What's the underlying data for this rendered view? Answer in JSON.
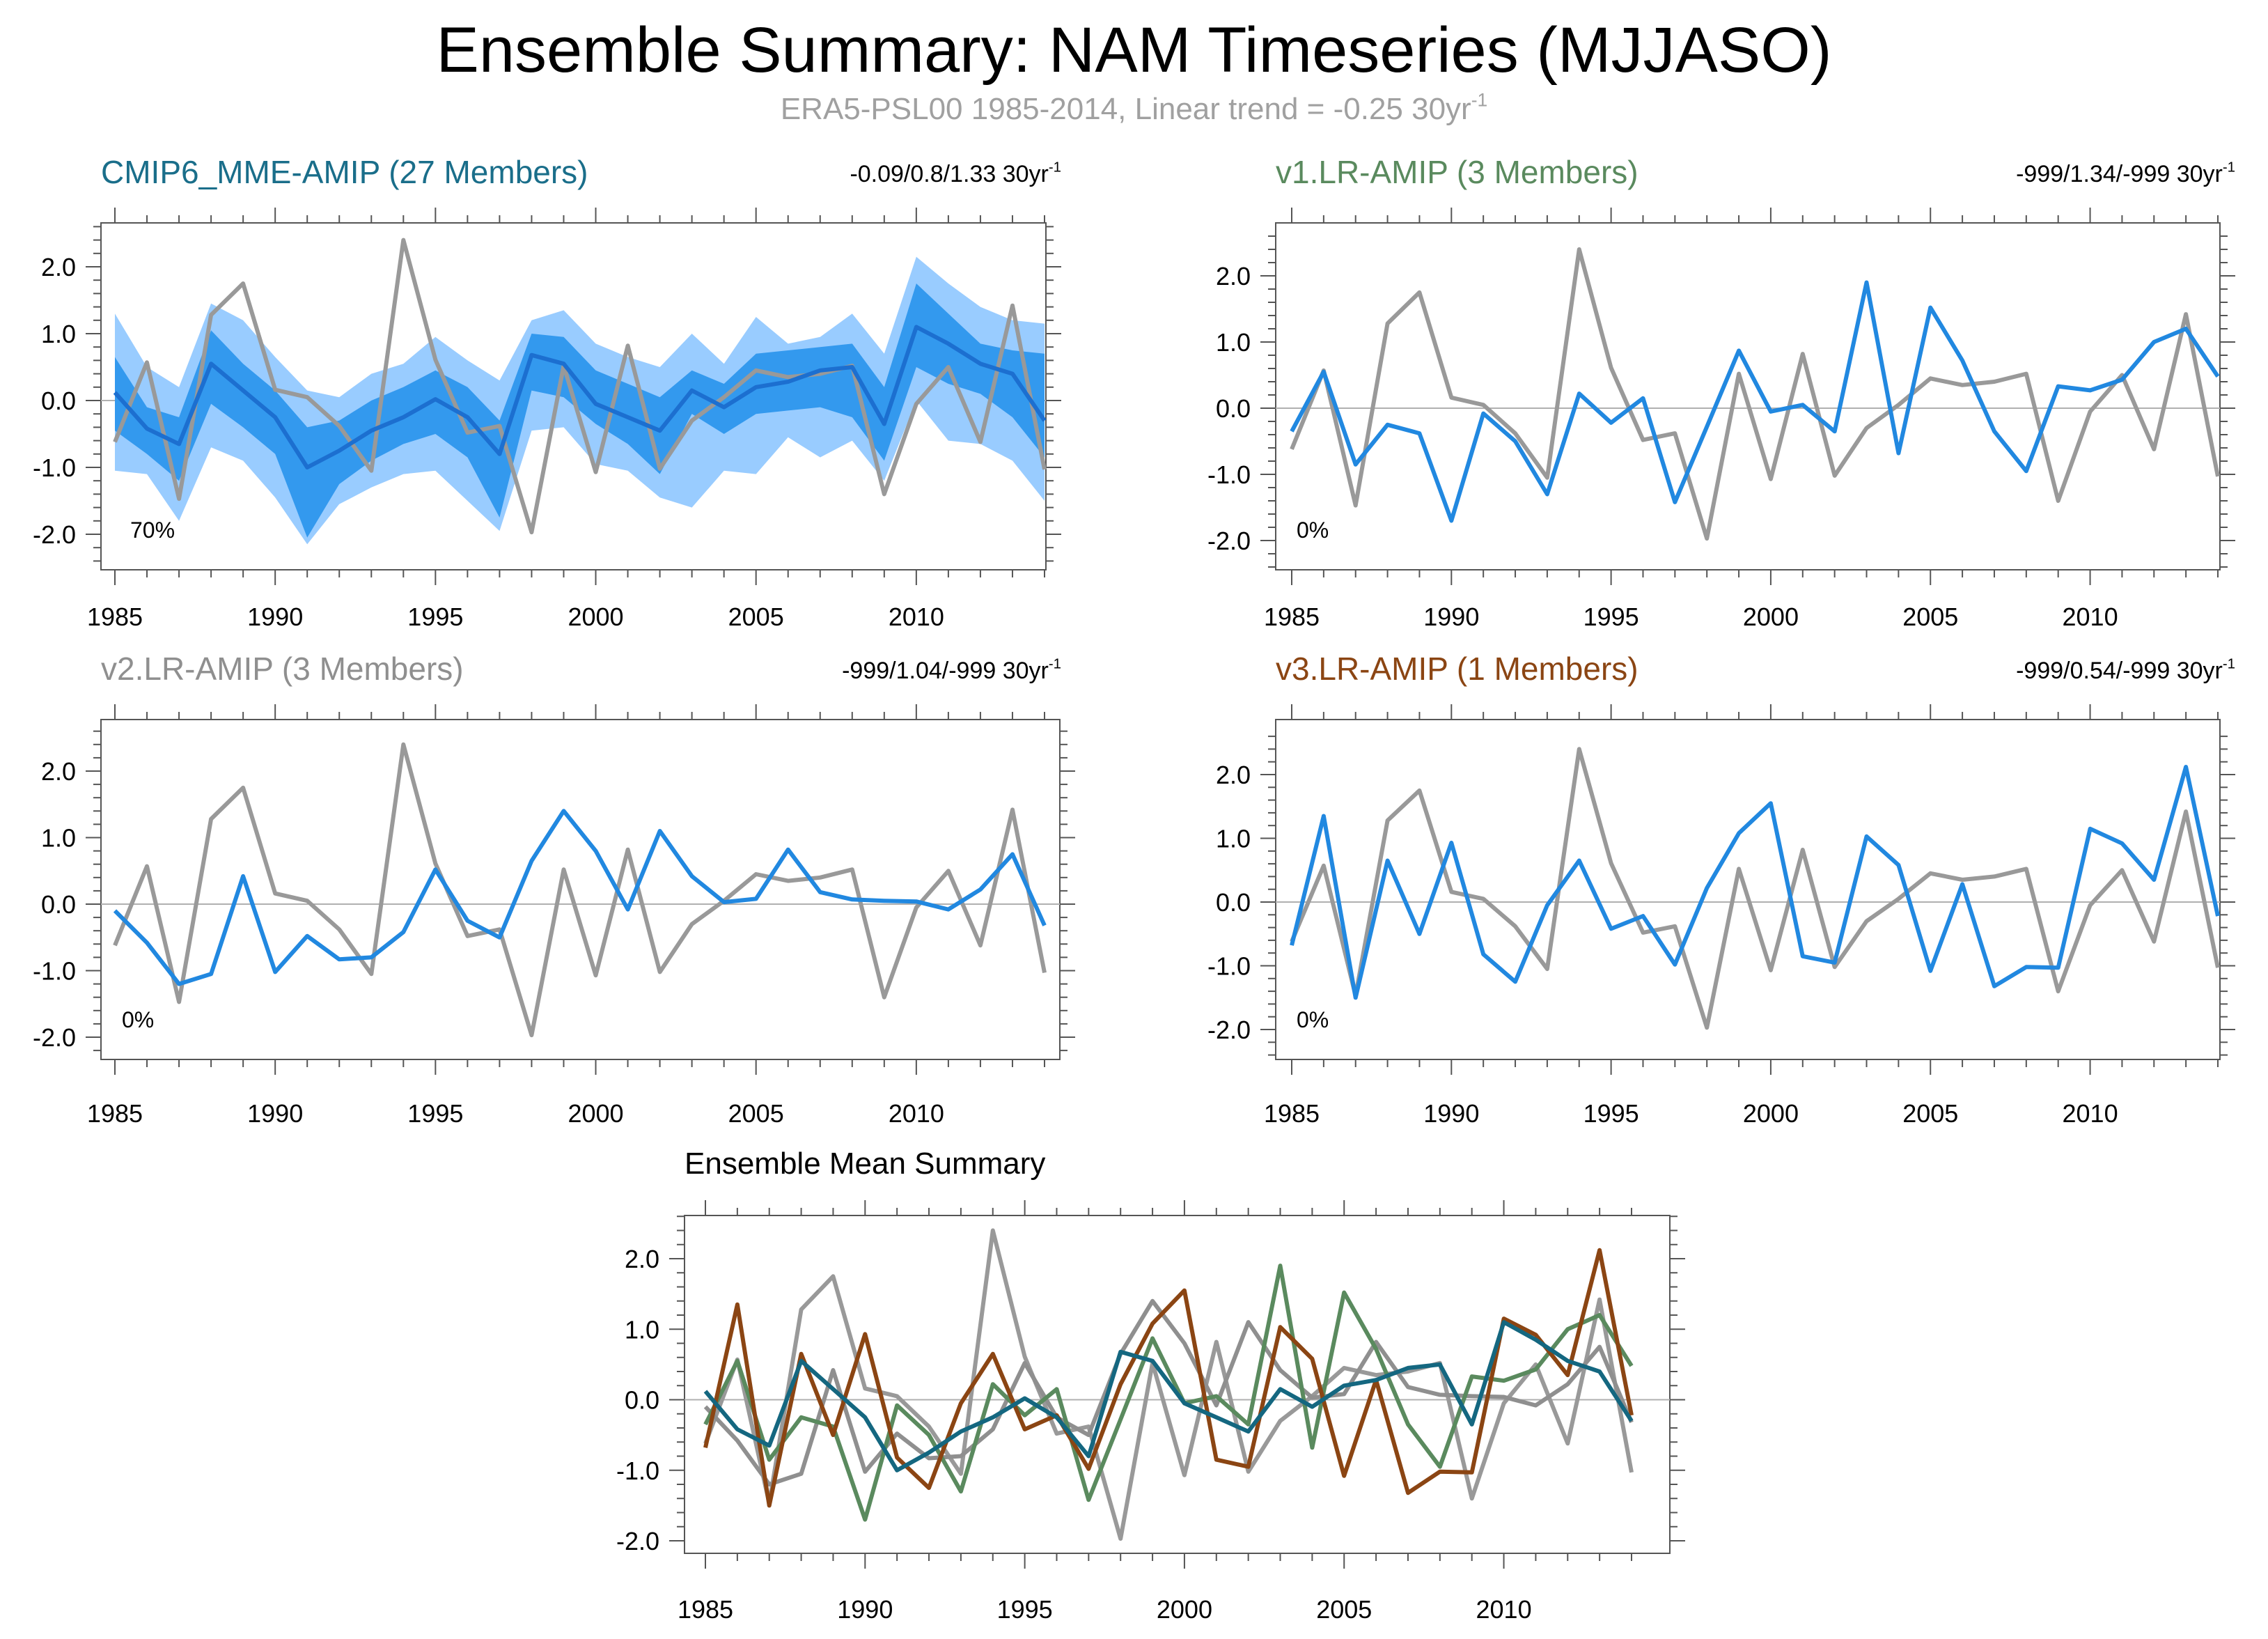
{
  "title": "Ensemble Summary: NAM Timeseries (MJJASO)",
  "subtitle": {
    "main": "ERA5-PSL00 1985-2014, Linear trend = -0.25 30yr",
    "sup": "-1"
  },
  "colors": {
    "obs": "#999999",
    "model": "#2188e0",
    "band_outer": "#99ccff",
    "band_inner": "#3399ee",
    "mme_mean": "#1c6fd0",
    "mme_title": "#1a6e8a",
    "v1": "#5a8a5e",
    "v2": "#8f8f8f",
    "v3": "#8b4513",
    "mean_mme": "#146780"
  },
  "chart_data": [
    {
      "type": "line",
      "title": "CMIP6_MME-AMIP (27 Members)",
      "trend_text": {
        "main": "-0.09/0.8/1.33 30yr",
        "sup": "-1"
      },
      "annotation": "70%",
      "x": [
        1985,
        1986,
        1987,
        1988,
        1989,
        1990,
        1991,
        1992,
        1993,
        1994,
        1995,
        1996,
        1997,
        1998,
        1999,
        2000,
        2001,
        2002,
        2003,
        2004,
        2005,
        2006,
        2007,
        2008,
        2009,
        2010,
        2011,
        2012,
        2013,
        2014
      ],
      "xticks": [
        "1985",
        "1990",
        "1995",
        "2000",
        "2005",
        "2010"
      ],
      "yticks": [
        "2.0",
        "1.0",
        "0.0",
        "-1.0",
        "-2.0"
      ],
      "ylim": [
        -2.55,
        2.65
      ],
      "series": [
        {
          "name": "ERA5-PSL00",
          "values": [
            -0.62,
            0.57,
            -1.47,
            1.28,
            1.75,
            0.16,
            0.05,
            -0.38,
            -1.05,
            2.4,
            0.61,
            -0.48,
            -0.38,
            -1.97,
            0.52,
            -1.07,
            0.82,
            -1.02,
            -0.3,
            0.05,
            0.45,
            0.35,
            0.4,
            0.52,
            -1.4,
            -0.05,
            0.5,
            -0.62,
            1.42,
            -1.03
          ]
        },
        {
          "name": "CMIP6_MME-AMIP mean",
          "values": [
            0.12,
            -0.42,
            -0.65,
            0.55,
            0.15,
            -0.25,
            -1.0,
            -0.75,
            -0.45,
            -0.25,
            0.02,
            -0.25,
            -0.8,
            0.68,
            0.55,
            -0.05,
            -0.25,
            -0.45,
            0.15,
            -0.1,
            0.2,
            0.28,
            0.45,
            0.5,
            -0.35,
            1.1,
            0.85,
            0.55,
            0.4,
            -0.3
          ]
        },
        {
          "name": "band 10-90% upper",
          "values": [
            1.3,
            0.5,
            0.2,
            1.45,
            1.2,
            0.65,
            0.15,
            0.05,
            0.4,
            0.55,
            0.95,
            0.6,
            0.3,
            1.2,
            1.35,
            0.85,
            0.65,
            0.5,
            1.0,
            0.55,
            1.25,
            0.85,
            0.95,
            1.3,
            0.7,
            2.15,
            1.75,
            1.4,
            1.2,
            1.15
          ]
        },
        {
          "name": "band 10-90% lower",
          "values": [
            -1.05,
            -1.1,
            -1.8,
            -0.7,
            -0.9,
            -1.45,
            -2.15,
            -1.55,
            -1.3,
            -1.1,
            -1.05,
            -1.5,
            -1.95,
            -0.45,
            -0.4,
            -0.95,
            -1.05,
            -1.45,
            -1.6,
            -1.05,
            -1.1,
            -0.55,
            -0.85,
            -0.6,
            -1.2,
            0.0,
            -0.6,
            -0.65,
            -0.9,
            -1.5
          ]
        },
        {
          "name": "band 25-75% upper",
          "values": [
            0.65,
            -0.1,
            -0.25,
            1.05,
            0.55,
            0.15,
            -0.4,
            -0.3,
            0.0,
            0.2,
            0.45,
            0.2,
            -0.3,
            1.0,
            0.95,
            0.45,
            0.25,
            0.05,
            0.45,
            0.25,
            0.7,
            0.75,
            0.8,
            0.85,
            0.2,
            1.75,
            1.3,
            0.85,
            0.75,
            0.7
          ]
        },
        {
          "name": "band 25-75% lower",
          "values": [
            -0.45,
            -0.8,
            -1.2,
            -0.05,
            -0.4,
            -0.8,
            -2.05,
            -1.25,
            -0.9,
            -0.65,
            -0.5,
            -0.85,
            -1.75,
            0.15,
            0.05,
            -0.35,
            -0.65,
            -1.1,
            -0.2,
            -0.5,
            -0.2,
            -0.15,
            -0.1,
            -0.25,
            -0.9,
            0.5,
            0.25,
            0.1,
            -0.25,
            -0.85
          ]
        }
      ]
    },
    {
      "type": "line",
      "title": "v1.LR-AMIP (3 Members)",
      "trend_text": {
        "main": "-999/1.34/-999 30yr",
        "sup": "-1"
      },
      "annotation": "0%",
      "x": [
        1985,
        1986,
        1987,
        1988,
        1989,
        1990,
        1991,
        1992,
        1993,
        1994,
        1995,
        1996,
        1997,
        1998,
        1999,
        2000,
        2001,
        2002,
        2003,
        2004,
        2005,
        2006,
        2007,
        2008,
        2009,
        2010,
        2011,
        2012,
        2013,
        2014
      ],
      "xticks": [
        "1985",
        "1990",
        "1995",
        "2000",
        "2005",
        "2010"
      ],
      "yticks": [
        "2.0",
        "1.0",
        "0.0",
        "-1.0",
        "-2.0"
      ],
      "ylim": [
        -2.3,
        2.8
      ],
      "series": [
        {
          "name": "ERA5-PSL00",
          "values": [
            -0.62,
            0.57,
            -1.47,
            1.28,
            1.75,
            0.16,
            0.05,
            -0.38,
            -1.05,
            2.4,
            0.61,
            -0.48,
            -0.38,
            -1.97,
            0.52,
            -1.07,
            0.82,
            -1.02,
            -0.3,
            0.05,
            0.45,
            0.35,
            0.4,
            0.52,
            -1.4,
            -0.05,
            0.5,
            -0.62,
            1.42,
            -1.03
          ]
        },
        {
          "name": "v1.LR-AMIP",
          "values": [
            -0.35,
            0.55,
            -0.85,
            -0.25,
            -0.38,
            -1.7,
            -0.08,
            -0.5,
            -1.3,
            0.22,
            -0.22,
            0.15,
            -1.42,
            -0.28,
            0.87,
            -0.05,
            0.05,
            -0.35,
            1.9,
            -0.68,
            1.52,
            0.72,
            -0.35,
            -0.95,
            0.33,
            0.27,
            0.43,
            1.0,
            1.2,
            0.48
          ]
        }
      ]
    },
    {
      "type": "line",
      "title": "v2.LR-AMIP (3 Members)",
      "trend_text": {
        "main": "-999/1.04/-999 30yr",
        "sup": "-1"
      },
      "annotation": "0%",
      "x": [
        1985,
        1986,
        1987,
        1988,
        1989,
        1990,
        1991,
        1992,
        1993,
        1994,
        1995,
        1996,
        1997,
        1998,
        1999,
        2000,
        2001,
        2002,
        2003,
        2004,
        2005,
        2006,
        2007,
        2008,
        2009,
        2010,
        2011,
        2012,
        2013,
        2014
      ],
      "xticks": [
        "1985",
        "1990",
        "1995",
        "2000",
        "2005",
        "2010"
      ],
      "yticks": [
        "2.0",
        "1.0",
        "0.0",
        "-1.0",
        "-2.0"
      ],
      "ylim": [
        -2.3,
        2.8
      ],
      "series": [
        {
          "name": "ERA5-PSL00",
          "values": [
            -0.62,
            0.57,
            -1.47,
            1.28,
            1.75,
            0.16,
            0.05,
            -0.38,
            -1.05,
            2.4,
            0.61,
            -0.48,
            -0.38,
            -1.97,
            0.52,
            -1.07,
            0.82,
            -1.02,
            -0.3,
            0.05,
            0.45,
            0.35,
            0.4,
            0.52,
            -1.4,
            -0.05,
            0.5,
            -0.62,
            1.42,
            -1.03
          ]
        },
        {
          "name": "v2.LR-AMIP",
          "values": [
            -0.1,
            -0.58,
            -1.2,
            -1.05,
            0.42,
            -1.02,
            -0.48,
            -0.83,
            -0.8,
            -0.42,
            0.52,
            -0.25,
            -0.5,
            0.65,
            1.4,
            0.8,
            -0.08,
            1.1,
            0.42,
            0.03,
            0.08,
            0.82,
            0.18,
            0.07,
            0.05,
            0.04,
            -0.08,
            0.22,
            0.75,
            -0.32
          ]
        }
      ]
    },
    {
      "type": "line",
      "title": "v3.LR-AMIP (1 Members)",
      "trend_text": {
        "main": "-999/0.54/-999 30yr",
        "sup": "-1"
      },
      "annotation": "0%",
      "x": [
        1985,
        1986,
        1987,
        1988,
        1989,
        1990,
        1991,
        1992,
        1993,
        1994,
        1995,
        1996,
        1997,
        1998,
        1999,
        2000,
        2001,
        2002,
        2003,
        2004,
        2005,
        2006,
        2007,
        2008,
        2009,
        2010,
        2011,
        2012,
        2013,
        2014
      ],
      "xticks": [
        "1985",
        "1990",
        "1995",
        "2000",
        "2005",
        "2010"
      ],
      "yticks": [
        "2.0",
        "1.0",
        "0.0",
        "-1.0",
        "-2.0"
      ],
      "ylim": [
        -2.3,
        2.8
      ],
      "series": [
        {
          "name": "ERA5-PSL00",
          "values": [
            -0.62,
            0.57,
            -1.47,
            1.28,
            1.75,
            0.16,
            0.05,
            -0.38,
            -1.05,
            2.4,
            0.61,
            -0.48,
            -0.38,
            -1.97,
            0.52,
            -1.07,
            0.82,
            -1.02,
            -0.3,
            0.05,
            0.45,
            0.35,
            0.4,
            0.52,
            -1.4,
            -0.05,
            0.5,
            -0.62,
            1.42,
            -1.03
          ]
        },
        {
          "name": "v3.LR-AMIP",
          "values": [
            -0.68,
            1.35,
            -1.5,
            0.65,
            -0.5,
            0.93,
            -0.82,
            -1.25,
            -0.05,
            0.65,
            -0.42,
            -0.22,
            -0.98,
            0.22,
            1.08,
            1.55,
            -0.85,
            -0.95,
            1.03,
            0.58,
            -1.08,
            0.28,
            -1.32,
            -1.02,
            -1.03,
            1.15,
            0.92,
            0.35,
            2.12,
            -0.22
          ]
        }
      ]
    },
    {
      "type": "line",
      "title": "Ensemble Mean Summary",
      "x": [
        1985,
        1986,
        1987,
        1988,
        1989,
        1990,
        1991,
        1992,
        1993,
        1994,
        1995,
        1996,
        1997,
        1998,
        1999,
        2000,
        2001,
        2002,
        2003,
        2004,
        2005,
        2006,
        2007,
        2008,
        2009,
        2010,
        2011,
        2012,
        2013,
        2014
      ],
      "xticks": [
        "1985",
        "1990",
        "1995",
        "2000",
        "2005",
        "2010"
      ],
      "yticks": [
        "2.0",
        "1.0",
        "0.0",
        "-1.0",
        "-2.0"
      ],
      "ylim": [
        -2.2,
        2.75
      ],
      "series": [
        {
          "name": "ERA5-PSL00",
          "values": [
            -0.62,
            0.57,
            -1.47,
            1.28,
            1.75,
            0.16,
            0.05,
            -0.38,
            -1.05,
            2.4,
            0.61,
            -0.48,
            -0.38,
            -1.97,
            0.52,
            -1.07,
            0.82,
            -1.02,
            -0.3,
            0.05,
            0.45,
            0.35,
            0.4,
            0.52,
            -1.4,
            -0.05,
            0.5,
            -0.62,
            1.42,
            -1.03
          ]
        },
        {
          "name": "v2.LR-AMIP",
          "values": [
            -0.1,
            -0.58,
            -1.2,
            -1.05,
            0.42,
            -1.02,
            -0.48,
            -0.83,
            -0.8,
            -0.42,
            0.52,
            -0.25,
            -0.5,
            0.65,
            1.4,
            0.8,
            -0.08,
            1.1,
            0.42,
            0.03,
            0.08,
            0.82,
            0.18,
            0.07,
            0.05,
            0.04,
            -0.08,
            0.22,
            0.75,
            -0.32
          ]
        },
        {
          "name": "v1.LR-AMIP",
          "values": [
            -0.35,
            0.55,
            -0.85,
            -0.25,
            -0.38,
            -1.7,
            -0.08,
            -0.5,
            -1.3,
            0.22,
            -0.22,
            0.15,
            -1.42,
            -0.28,
            0.87,
            -0.05,
            0.05,
            -0.35,
            1.9,
            -0.68,
            1.52,
            0.72,
            -0.35,
            -0.95,
            0.33,
            0.27,
            0.43,
            1.0,
            1.2,
            0.48
          ]
        },
        {
          "name": "v3.LR-AMIP",
          "values": [
            -0.68,
            1.35,
            -1.5,
            0.65,
            -0.5,
            0.93,
            -0.82,
            -1.25,
            -0.05,
            0.65,
            -0.42,
            -0.22,
            -0.98,
            0.22,
            1.08,
            1.55,
            -0.85,
            -0.95,
            1.03,
            0.58,
            -1.08,
            0.28,
            -1.32,
            -1.02,
            -1.03,
            1.15,
            0.92,
            0.35,
            2.12,
            -0.22
          ]
        },
        {
          "name": "CMIP6_MME-AMIP",
          "values": [
            0.12,
            -0.42,
            -0.65,
            0.55,
            0.15,
            -0.25,
            -1.0,
            -0.75,
            -0.45,
            -0.25,
            0.02,
            -0.25,
            -0.8,
            0.68,
            0.55,
            -0.05,
            -0.25,
            -0.45,
            0.15,
            -0.1,
            0.2,
            0.28,
            0.45,
            0.5,
            -0.35,
            1.1,
            0.85,
            0.55,
            0.4,
            -0.3
          ]
        }
      ]
    }
  ]
}
